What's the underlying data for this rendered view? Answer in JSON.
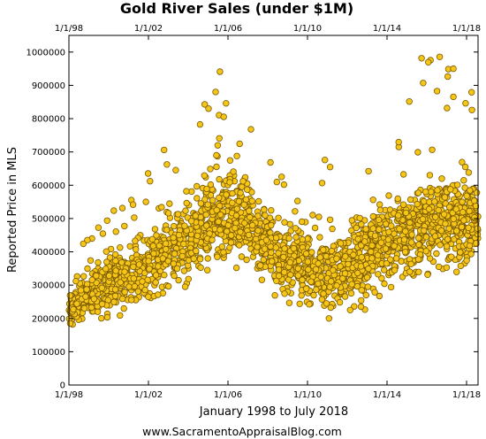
{
  "chart_data": {
    "type": "scatter",
    "title": "Gold River Sales (under $1M)",
    "xlabel": "January 1998 to July 2018",
    "ylabel": "Reported Price in MLS",
    "source": "www.SacramentoAppraisalBlog.com",
    "x_ticks": [
      "1/1/98",
      "1/1/02",
      "1/1/06",
      "1/1/10",
      "1/1/14",
      "1/1/18"
    ],
    "y_ticks": [
      "0",
      "100000",
      "200000",
      "300000",
      "400000",
      "500000",
      "600000",
      "700000",
      "800000",
      "900000",
      "1000000"
    ],
    "xlim": [
      "1998-01-01",
      "2018-07-31"
    ],
    "ylim": [
      0,
      1050000
    ],
    "grid": false,
    "marker_color": "#f5c518",
    "marker_edge": "#7a5a00",
    "trend_anchors": [
      {
        "x": "1998-01-01",
        "low": 175000,
        "mid": 230000,
        "high": 420000
      },
      {
        "x": "2000-01-01",
        "low": 200000,
        "mid": 300000,
        "high": 560000
      },
      {
        "x": "2002-01-01",
        "low": 250000,
        "mid": 360000,
        "high": 650000
      },
      {
        "x": "2004-01-01",
        "low": 300000,
        "mid": 440000,
        "high": 800000
      },
      {
        "x": "2005-06-01",
        "low": 330000,
        "mid": 520000,
        "high": 1000000
      },
      {
        "x": "2006-06-01",
        "low": 360000,
        "mid": 510000,
        "high": 930000
      },
      {
        "x": "2007-06-01",
        "low": 320000,
        "mid": 450000,
        "high": 720000
      },
      {
        "x": "2008-06-01",
        "low": 260000,
        "mid": 380000,
        "high": 650000
      },
      {
        "x": "2010-01-01",
        "low": 230000,
        "mid": 350000,
        "high": 560000
      },
      {
        "x": "2011-06-01",
        "low": 190000,
        "mid": 330000,
        "high": 760000
      },
      {
        "x": "2012-06-01",
        "low": 210000,
        "mid": 360000,
        "high": 560000
      },
      {
        "x": "2014-01-01",
        "low": 280000,
        "mid": 430000,
        "high": 780000
      },
      {
        "x": "2016-01-01",
        "low": 330000,
        "mid": 480000,
        "high": 1050000
      },
      {
        "x": "2018-07-31",
        "low": 350000,
        "mid": 500000,
        "high": 860000
      }
    ],
    "point_count": 2400
  }
}
